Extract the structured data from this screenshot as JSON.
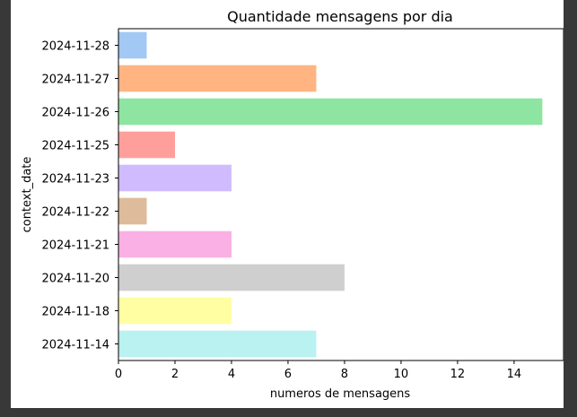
{
  "chart_data": {
    "type": "bar",
    "orientation": "horizontal",
    "title": "Quantidade mensagens por dia",
    "xlabel": "numeros de mensagens",
    "ylabel": "context_date",
    "categories": [
      "2024-11-28",
      "2024-11-27",
      "2024-11-26",
      "2024-11-25",
      "2024-11-23",
      "2024-11-22",
      "2024-11-21",
      "2024-11-20",
      "2024-11-18",
      "2024-11-14"
    ],
    "values": [
      1,
      7,
      15,
      2,
      4,
      1,
      4,
      8,
      4,
      7
    ],
    "colors": [
      "#a1c9f4",
      "#ffb482",
      "#8de5a1",
      "#ff9f9b",
      "#d0bbff",
      "#debb9b",
      "#fab0e4",
      "#cfcfcf",
      "#fffea3",
      "#b9f2f0"
    ],
    "xlim": [
      0,
      15.75
    ],
    "xticks": [
      0,
      2,
      4,
      6,
      8,
      10,
      12,
      14
    ],
    "grid": false,
    "legend": "none"
  }
}
